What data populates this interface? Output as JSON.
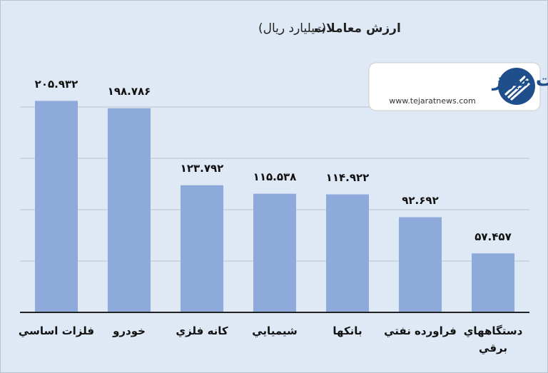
{
  "chart_data": {
    "type": "bar",
    "title": "ارزش معاملات",
    "subtitle": "(میلیارد ریال)",
    "categories": [
      "فلزات اساسي",
      "خودرو",
      "کانه فلزي",
      "شيميايي",
      "بانکها",
      "فراورده نفتي",
      "دستگاههاي\nبرقي"
    ],
    "values": [
      205932,
      198786,
      123792,
      115538,
      114922,
      92692,
      57457
    ],
    "value_labels": [
      "۲۰۵.۹۳۲",
      "۱۹۸.۷۸۶",
      "۱۲۳.۷۹۲",
      "۱۱۵.۵۳۸",
      "۱۱۴.۹۲۲",
      "۹۲.۶۹۲",
      "۵۷.۴۵۷"
    ],
    "color": "#8eaadb",
    "ylim": [
      0,
      250000
    ],
    "yticks": [
      0,
      50000,
      100000,
      150000,
      200000
    ],
    "grid": true
  },
  "logo": {
    "name": "تجارت نیوز",
    "url": "www.tejaratnews.com"
  }
}
